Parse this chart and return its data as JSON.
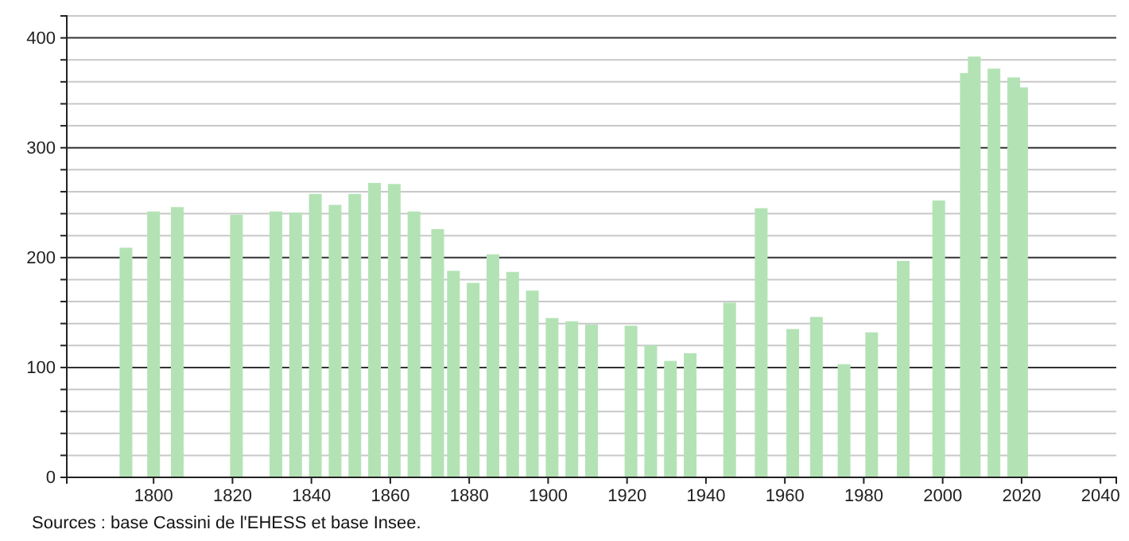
{
  "chart_data": {
    "type": "bar",
    "x": [
      1793,
      1800,
      1806,
      1821,
      1831,
      1836,
      1841,
      1846,
      1851,
      1856,
      1861,
      1866,
      1872,
      1876,
      1881,
      1886,
      1891,
      1896,
      1901,
      1906,
      1911,
      1921,
      1926,
      1931,
      1936,
      1946,
      1954,
      1962,
      1968,
      1975,
      1982,
      1990,
      1999,
      2006,
      2008,
      2013,
      2018,
      2020
    ],
    "values": [
      209,
      242,
      246,
      239,
      242,
      241,
      258,
      248,
      258,
      268,
      267,
      242,
      226,
      188,
      177,
      203,
      187,
      170,
      145,
      142,
      139,
      138,
      120,
      106,
      113,
      159,
      245,
      135,
      146,
      103,
      132,
      197,
      252,
      368,
      383,
      372,
      364,
      355
    ],
    "color": "#b3e3b5",
    "xlim": [
      1778,
      2044
    ],
    "xticks": [
      1800,
      1820,
      1840,
      1860,
      1880,
      1900,
      1920,
      1940,
      1960,
      1980,
      2000,
      2020,
      2040
    ],
    "ylim": [
      0,
      420
    ],
    "yticks": [
      0,
      {
        "value": 20,
        "label": null
      },
      {
        "value": 40,
        "label": null
      },
      {
        "value": 60,
        "label": null
      },
      {
        "value": 80,
        "label": null
      },
      100,
      {
        "value": 120,
        "label": null
      },
      {
        "value": 140,
        "label": null
      },
      {
        "value": 160,
        "label": null
      },
      {
        "value": 180,
        "label": null
      },
      200,
      {
        "value": 220,
        "label": null
      },
      {
        "value": 240,
        "label": null
      },
      {
        "value": 260,
        "label": null
      },
      {
        "value": 280,
        "label": null
      },
      300,
      {
        "value": 320,
        "label": null
      },
      {
        "value": 340,
        "label": null
      },
      {
        "value": 360,
        "label": null
      },
      {
        "value": 380,
        "label": null
      },
      400,
      {
        "value": 420,
        "label": null
      }
    ],
    "grid": "y",
    "annotations": [
      "Sources : base Cassini de l'EHESS et base Insee."
    ]
  }
}
